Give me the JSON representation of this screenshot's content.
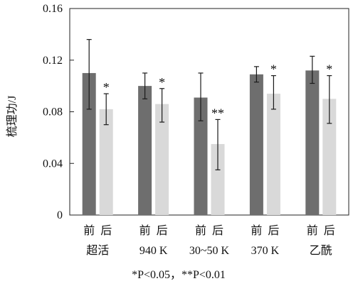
{
  "chart_data": {
    "type": "bar",
    "ylabel": "梳理功/J",
    "ylim": [
      0,
      0.16
    ],
    "yticks": [
      {
        "value": 0,
        "label": "0"
      },
      {
        "value": 0.04,
        "label": "0.04"
      },
      {
        "value": 0.08,
        "label": "0.08"
      },
      {
        "value": 0.12,
        "label": "0.12"
      },
      {
        "value": 0.16,
        "label": "0.16"
      }
    ],
    "groups": [
      {
        "category": "超活",
        "before_label": "前",
        "after_label": "后",
        "before": {
          "value": 0.11,
          "err_low": 0.082,
          "err_high": 0.136,
          "sig": ""
        },
        "after": {
          "value": 0.082,
          "err_low": 0.07,
          "err_high": 0.094,
          "sig": "*"
        }
      },
      {
        "category": "940 K",
        "before_label": "前",
        "after_label": "后",
        "before": {
          "value": 0.1,
          "err_low": 0.09,
          "err_high": 0.11,
          "sig": ""
        },
        "after": {
          "value": 0.086,
          "err_low": 0.072,
          "err_high": 0.098,
          "sig": "*"
        }
      },
      {
        "category": "30~50 K",
        "before_label": "前",
        "after_label": "后",
        "before": {
          "value": 0.091,
          "err_low": 0.073,
          "err_high": 0.11,
          "sig": ""
        },
        "after": {
          "value": 0.055,
          "err_low": 0.035,
          "err_high": 0.074,
          "sig": "**"
        }
      },
      {
        "category": "370 K",
        "before_label": "前",
        "after_label": "后",
        "before": {
          "value": 0.109,
          "err_low": 0.103,
          "err_high": 0.115,
          "sig": ""
        },
        "after": {
          "value": 0.094,
          "err_low": 0.082,
          "err_high": 0.108,
          "sig": "*"
        }
      },
      {
        "category": "乙酰",
        "before_label": "前",
        "after_label": "后",
        "before": {
          "value": 0.112,
          "err_low": 0.102,
          "err_high": 0.123,
          "sig": ""
        },
        "after": {
          "value": 0.09,
          "err_low": 0.071,
          "err_high": 0.108,
          "sig": "*"
        }
      }
    ],
    "colors": {
      "before": "#6e6e6e",
      "after": "#d9d9d9",
      "error_bar": "#1a1a1a",
      "axis": "#222222"
    },
    "grid": false,
    "footnote": "*P<0.05，**P<0.01"
  }
}
